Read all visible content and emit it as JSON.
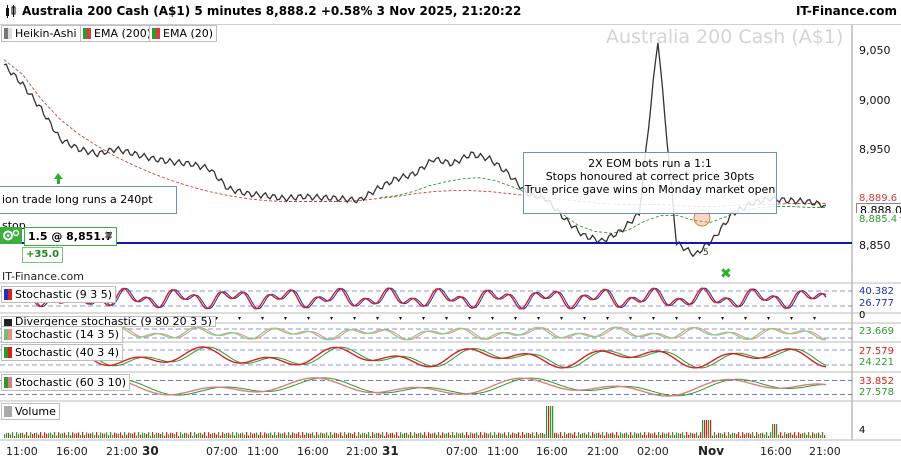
{
  "header": {
    "title": "Australia 200 Cash (A$1) 5 minutes 8,888.2 +0.58% 3 Nov 2025, 21:20:22",
    "brand": "IT-Finance.com"
  },
  "legend": [
    {
      "label": "Heikin-Ashi",
      "color": "#555555"
    },
    {
      "label": "EMA (200)",
      "color": "#d83c3c"
    },
    {
      "label": "EMA (20)",
      "color": "#2e9a2e"
    }
  ],
  "watermark": "Australia 200 Cash (A$1)",
  "price_axis": {
    "ticks": [
      "9,050",
      "9,000",
      "8,950",
      "8,888.0",
      "8,850"
    ],
    "tags": [
      {
        "value": "8,889.6",
        "color": "#d83c3c"
      },
      {
        "value": "8,888.0",
        "color": "#000000"
      },
      {
        "value": "8,885.4",
        "color": "#2e9a2e"
      }
    ]
  },
  "annotations": {
    "left_note": "ion trade long runs a 240pt stop",
    "right_note_lines": [
      "2X EOM bots run a 1:1",
      "Stops honoured at correct price 30pts",
      "True price gave wins on Monday market open"
    ],
    "marker_5": "5"
  },
  "order": {
    "text": "1.5 @ 8,851.7",
    "close": "✖",
    "pnl": "+35.0"
  },
  "itf_label": "IT-Finance.com",
  "indicators": [
    {
      "label": "Stochastic (9 3 5)",
      "values": [
        "40.382",
        "26.777"
      ]
    },
    {
      "label": "Divergence stochastic (9 80 20 3 5)",
      "values": [
        "0"
      ]
    },
    {
      "label": "Stochastic (14 3 5)",
      "values": [
        "23.669"
      ]
    },
    {
      "label": "Stochastic (40 3 4)",
      "values": [
        "27.579",
        "24.221"
      ]
    },
    {
      "label": "Stochastic (60 3 10)",
      "values": [
        "33.852",
        "27.578"
      ]
    },
    {
      "label": "Volume",
      "values": [
        "4"
      ]
    }
  ],
  "x_axis": [
    {
      "label": "11:00",
      "bold": false
    },
    {
      "label": "16:00",
      "bold": false
    },
    {
      "label": "21:00",
      "bold": false
    },
    {
      "label": "30",
      "bold": true
    },
    {
      "label": "07:00",
      "bold": false
    },
    {
      "label": "11:00",
      "bold": false
    },
    {
      "label": "16:00",
      "bold": false
    },
    {
      "label": "21:00",
      "bold": false
    },
    {
      "label": "31",
      "bold": true
    },
    {
      "label": "07:00",
      "bold": false
    },
    {
      "label": "11:00",
      "bold": false
    },
    {
      "label": "16:00",
      "bold": false
    },
    {
      "label": "21:00",
      "bold": false
    },
    {
      "label": "02:00",
      "bold": false
    },
    {
      "label": "Nov",
      "bold": true
    },
    {
      "label": "16:00",
      "bold": false
    },
    {
      "label": "21:00",
      "bold": false
    }
  ],
  "chart_data": {
    "type": "line",
    "series": [
      {
        "name": "Heikin-Ashi",
        "values": [
          9030,
          9010,
          8985,
          8955,
          8945,
          8940,
          8945,
          8940,
          8935,
          8932,
          8930,
          8925,
          8905,
          8900,
          8898,
          8895,
          8897,
          8896,
          8895,
          8893,
          8905,
          8915,
          8920,
          8935,
          8930,
          8940,
          8935,
          8920,
          8900,
          8895,
          8875,
          8858,
          8852,
          8862,
          8880,
          9055,
          8850,
          8838,
          8855,
          8880,
          8890,
          8895,
          8893,
          8892,
          8888
        ]
      },
      {
        "name": "EMA (200)",
        "values": [
          9035,
          9020,
          8995,
          8975,
          8960,
          8948,
          8937,
          8928,
          8920,
          8913,
          8907,
          8902,
          8898,
          8895,
          8893,
          8892,
          8892,
          8892,
          8892,
          8893,
          8895,
          8897,
          8900,
          8902,
          8903,
          8903,
          8902,
          8900,
          8898,
          8896,
          8894,
          8892,
          8890,
          8889,
          8889,
          8889,
          8888,
          8887,
          8887,
          8888,
          8889,
          8889,
          8890,
          8890,
          8890
        ]
      },
      {
        "name": "EMA (20)",
        "values": [
          8896,
          8898,
          8902,
          8908,
          8912,
          8915,
          8916,
          8913,
          8907,
          8900,
          8893,
          8880,
          8868,
          8862,
          8860,
          8863,
          8872,
          8878,
          8878,
          8873,
          8871,
          8877,
          8883,
          8886,
          8887,
          8887,
          8886,
          8886
        ]
      }
    ],
    "ylim": [
      8825,
      9070
    ],
    "hlines": [
      8852
    ]
  }
}
